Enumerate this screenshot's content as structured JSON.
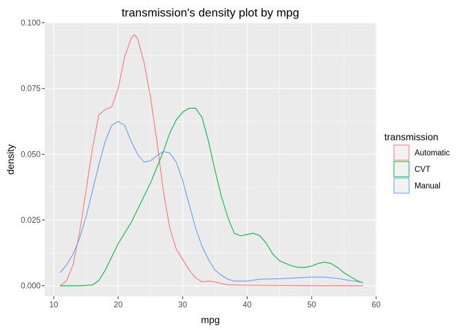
{
  "chart_data": {
    "type": "line",
    "title": "transmission's density plot by mpg",
    "xlabel": "mpg",
    "ylabel": "density",
    "xlim": [
      8.6,
      60.1
    ],
    "ylim": [
      -0.004,
      0.1
    ],
    "x_ticks": [
      10,
      20,
      30,
      40,
      50,
      60
    ],
    "x_tick_labels": [
      "10",
      "20",
      "30",
      "40",
      "50",
      "60"
    ],
    "y_ticks": [
      0,
      0.025,
      0.05,
      0.075,
      0.1
    ],
    "y_tick_labels": [
      "0.000",
      "0.025",
      "0.050",
      "0.075",
      "0.100"
    ],
    "grid": true,
    "legend": {
      "title": "transmission",
      "position": "right"
    },
    "series": [
      {
        "name": "Automatic",
        "color": "#F8766D",
        "points": [
          [
            11,
            0.0
          ],
          [
            12,
            0.002
          ],
          [
            13,
            0.008
          ],
          [
            14,
            0.02
          ],
          [
            15,
            0.036
          ],
          [
            16,
            0.052
          ],
          [
            17,
            0.065
          ],
          [
            18,
            0.067
          ],
          [
            19,
            0.068
          ],
          [
            20,
            0.075
          ],
          [
            21,
            0.087
          ],
          [
            22,
            0.094
          ],
          [
            22.5,
            0.0955
          ],
          [
            23,
            0.094
          ],
          [
            24,
            0.085
          ],
          [
            25,
            0.072
          ],
          [
            26,
            0.055
          ],
          [
            27,
            0.036
          ],
          [
            28,
            0.022
          ],
          [
            29,
            0.014
          ],
          [
            30,
            0.01
          ],
          [
            31,
            0.006
          ],
          [
            32,
            0.003
          ],
          [
            33,
            0.0015
          ],
          [
            34,
            0.0018
          ],
          [
            35,
            0.0015
          ],
          [
            36,
            0.0008
          ],
          [
            37,
            0.0004
          ],
          [
            40,
            0.0002
          ],
          [
            50,
            0.0
          ],
          [
            58,
            0.0
          ]
        ]
      },
      {
        "name": "CVT",
        "color": "#00BA38",
        "points": [
          [
            11,
            0.0
          ],
          [
            14,
            0.0
          ],
          [
            16,
            0.0003
          ],
          [
            17,
            0.002
          ],
          [
            18,
            0.006
          ],
          [
            19,
            0.011
          ],
          [
            20,
            0.016
          ],
          [
            21,
            0.02
          ],
          [
            22,
            0.024
          ],
          [
            23,
            0.029
          ],
          [
            24,
            0.034
          ],
          [
            25,
            0.039
          ],
          [
            26,
            0.045
          ],
          [
            27,
            0.051
          ],
          [
            28,
            0.058
          ],
          [
            29,
            0.063
          ],
          [
            30,
            0.066
          ],
          [
            31,
            0.0675
          ],
          [
            32,
            0.0675
          ],
          [
            33,
            0.064
          ],
          [
            34,
            0.055
          ],
          [
            35,
            0.044
          ],
          [
            36,
            0.034
          ],
          [
            37,
            0.026
          ],
          [
            38,
            0.02
          ],
          [
            39,
            0.019
          ],
          [
            40,
            0.0195
          ],
          [
            41,
            0.02
          ],
          [
            42,
            0.019
          ],
          [
            43,
            0.016
          ],
          [
            44,
            0.012
          ],
          [
            45,
            0.0095
          ],
          [
            46,
            0.0085
          ],
          [
            47,
            0.0075
          ],
          [
            48,
            0.007
          ],
          [
            49,
            0.007
          ],
          [
            50,
            0.0075
          ],
          [
            51,
            0.0085
          ],
          [
            52,
            0.009
          ],
          [
            53,
            0.0085
          ],
          [
            54,
            0.007
          ],
          [
            55,
            0.005
          ],
          [
            56,
            0.0035
          ],
          [
            57,
            0.002
          ],
          [
            58,
            0.0012
          ]
        ]
      },
      {
        "name": "Manual",
        "color": "#619CFF",
        "points": [
          [
            11,
            0.005
          ],
          [
            12,
            0.008
          ],
          [
            13,
            0.012
          ],
          [
            14,
            0.018
          ],
          [
            15,
            0.026
          ],
          [
            16,
            0.036
          ],
          [
            17,
            0.046
          ],
          [
            18,
            0.055
          ],
          [
            19,
            0.061
          ],
          [
            20,
            0.0625
          ],
          [
            21,
            0.061
          ],
          [
            22,
            0.055
          ],
          [
            23,
            0.05
          ],
          [
            24,
            0.047
          ],
          [
            25,
            0.0475
          ],
          [
            26,
            0.0495
          ],
          [
            27,
            0.051
          ],
          [
            28,
            0.0505
          ],
          [
            29,
            0.047
          ],
          [
            30,
            0.04
          ],
          [
            31,
            0.031
          ],
          [
            32,
            0.022
          ],
          [
            33,
            0.015
          ],
          [
            34,
            0.01
          ],
          [
            35,
            0.006
          ],
          [
            36,
            0.004
          ],
          [
            37,
            0.0025
          ],
          [
            38,
            0.0018
          ],
          [
            40,
            0.0018
          ],
          [
            42,
            0.0025
          ],
          [
            45,
            0.0027
          ],
          [
            50,
            0.0033
          ],
          [
            52,
            0.0033
          ],
          [
            54,
            0.0028
          ],
          [
            56,
            0.002
          ],
          [
            58,
            0.0012
          ]
        ]
      }
    ]
  }
}
